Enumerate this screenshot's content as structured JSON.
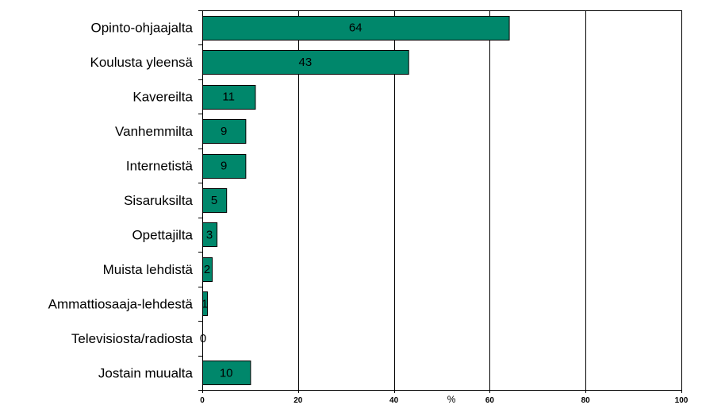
{
  "chart_data": {
    "type": "bar",
    "orientation": "horizontal",
    "categories": [
      "Opinto-ohjaajalta",
      "Koulusta yleensä",
      "Kavereilta",
      "Vanhemmilta",
      "Internetistä",
      "Sisaruksilta",
      "Opettajilta",
      "Muista lehdistä",
      "Ammattiosaaja-lehdestä",
      "Televisiosta/radiosta",
      "Jostain muualta"
    ],
    "values": [
      64,
      43,
      11,
      9,
      9,
      5,
      3,
      2,
      1,
      0,
      10
    ],
    "xlabel": "%",
    "xlim": [
      0,
      100
    ],
    "xticks": [
      0,
      20,
      40,
      60,
      80,
      100
    ],
    "grid": true,
    "legend": "none",
    "colors": {
      "bar": "#00876b",
      "bar_edge": "#000000",
      "grid": "#000000"
    }
  }
}
